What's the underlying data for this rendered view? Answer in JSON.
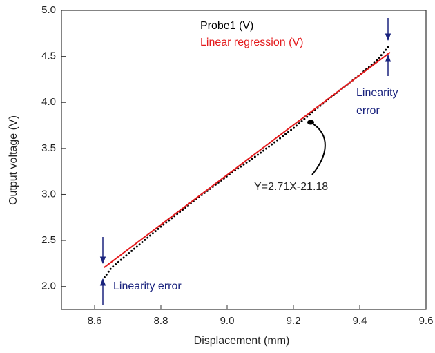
{
  "chart_data": {
    "type": "line",
    "xlabel": "Displacement (mm)",
    "ylabel": "Output voltage (V)",
    "xlim": [
      8.5,
      9.6
    ],
    "xticks": [
      8.6,
      8.8,
      {
        "value": 9,
        "label": "9.0"
      },
      9.2,
      9.4,
      9.6
    ],
    "ylim": [
      1.75,
      5.0
    ],
    "yticks": [
      {
        "value": 2,
        "label": "2.0"
      },
      2.5,
      {
        "value": 3,
        "label": "3.0"
      },
      3.5,
      {
        "value": 4,
        "label": "4.0"
      },
      4.5,
      {
        "value": 5,
        "label": "5.0"
      }
    ],
    "series": [
      {
        "name": "Probe1 (V)",
        "color": "#000000",
        "style": "dotted",
        "x": [
          8.63,
          8.65,
          8.7,
          8.8,
          8.9,
          9.0,
          9.1,
          9.2,
          9.3,
          9.4,
          9.45,
          9.49
        ],
        "values": [
          2.1,
          2.2,
          2.35,
          2.65,
          2.93,
          3.2,
          3.45,
          3.72,
          4.02,
          4.3,
          4.45,
          4.62
        ]
      },
      {
        "name": "Linear regression (V)",
        "color": "#e41a1c",
        "style": "solid",
        "x": [
          8.63,
          9.49
        ],
        "values": [
          2.21,
          4.54
        ]
      }
    ],
    "annotations": [
      {
        "text": "Linearity error"
      },
      {
        "lines": [
          "Linearity",
          "error"
        ]
      },
      {
        "text": "Y=2.71X-21.18"
      }
    ]
  }
}
